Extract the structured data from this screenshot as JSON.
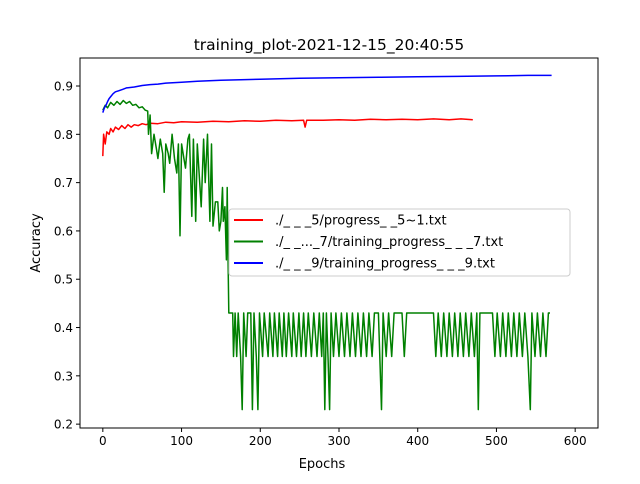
{
  "chart_data": {
    "type": "line",
    "title": "training_plot-2021-12-15_20:40:55",
    "xlabel": "Epochs",
    "ylabel": "Accuracy",
    "xlim": [
      -29,
      629
    ],
    "ylim": [
      0.192,
      0.958
    ],
    "xticks": [
      0,
      100,
      200,
      300,
      400,
      500,
      600
    ],
    "yticks": [
      0.2,
      0.3,
      0.4,
      0.5,
      0.6,
      0.7,
      0.8,
      0.9
    ],
    "ytick_labels": [
      "0.2",
      "0.3",
      "0.4",
      "0.5",
      "0.6",
      "0.7",
      "0.8",
      "0.9"
    ],
    "grid": false,
    "legend_placement": "center-right",
    "series": [
      {
        "name": "./_ _ _5/progress_ _5~1.txt",
        "color": "#ff0000",
        "points": [
          [
            0,
            0.755
          ],
          [
            1,
            0.8
          ],
          [
            3,
            0.78
          ],
          [
            5,
            0.805
          ],
          [
            8,
            0.8
          ],
          [
            10,
            0.812
          ],
          [
            13,
            0.805
          ],
          [
            16,
            0.815
          ],
          [
            20,
            0.81
          ],
          [
            24,
            0.818
          ],
          [
            28,
            0.812
          ],
          [
            32,
            0.82
          ],
          [
            36,
            0.815
          ],
          [
            40,
            0.82
          ],
          [
            45,
            0.818
          ],
          [
            50,
            0.822
          ],
          [
            55,
            0.82
          ],
          [
            60,
            0.823
          ],
          [
            70,
            0.822
          ],
          [
            80,
            0.825
          ],
          [
            90,
            0.824
          ],
          [
            100,
            0.826
          ],
          [
            120,
            0.825
          ],
          [
            140,
            0.827
          ],
          [
            160,
            0.826
          ],
          [
            180,
            0.828
          ],
          [
            200,
            0.827
          ],
          [
            220,
            0.829
          ],
          [
            240,
            0.828
          ],
          [
            255,
            0.829
          ],
          [
            257,
            0.815
          ],
          [
            259,
            0.829
          ],
          [
            280,
            0.829
          ],
          [
            300,
            0.83
          ],
          [
            320,
            0.829
          ],
          [
            340,
            0.831
          ],
          [
            360,
            0.83
          ],
          [
            380,
            0.831
          ],
          [
            400,
            0.83
          ],
          [
            420,
            0.832
          ],
          [
            440,
            0.83
          ],
          [
            455,
            0.832
          ],
          [
            470,
            0.83
          ]
        ]
      },
      {
        "name": "./_ _..._7/training_progress_ _ _7.txt",
        "color": "#008000",
        "points": [
          [
            0,
            0.85
          ],
          [
            3,
            0.86
          ],
          [
            6,
            0.855
          ],
          [
            10,
            0.866
          ],
          [
            14,
            0.86
          ],
          [
            18,
            0.868
          ],
          [
            22,
            0.862
          ],
          [
            26,
            0.87
          ],
          [
            30,
            0.864
          ],
          [
            34,
            0.868
          ],
          [
            38,
            0.86
          ],
          [
            42,
            0.862
          ],
          [
            46,
            0.855
          ],
          [
            50,
            0.857
          ],
          [
            54,
            0.85
          ],
          [
            57,
            0.848
          ],
          [
            58,
            0.8
          ],
          [
            60,
            0.84
          ],
          [
            62,
            0.76
          ],
          [
            65,
            0.8
          ],
          [
            68,
            0.77
          ],
          [
            70,
            0.75
          ],
          [
            73,
            0.79
          ],
          [
            76,
            0.76
          ],
          [
            78,
            0.68
          ],
          [
            80,
            0.78
          ],
          [
            83,
            0.76
          ],
          [
            85,
            0.74
          ],
          [
            88,
            0.8
          ],
          [
            91,
            0.75
          ],
          [
            94,
            0.72
          ],
          [
            96,
            0.78
          ],
          [
            98,
            0.59
          ],
          [
            100,
            0.78
          ],
          [
            103,
            0.75
          ],
          [
            105,
            0.73
          ],
          [
            108,
            0.79
          ],
          [
            110,
            0.8
          ],
          [
            113,
            0.63
          ],
          [
            115,
            0.79
          ],
          [
            118,
            0.62
          ],
          [
            120,
            0.78
          ],
          [
            123,
            0.7
          ],
          [
            125,
            0.65
          ],
          [
            128,
            0.79
          ],
          [
            130,
            0.7
          ],
          [
            133,
            0.8
          ],
          [
            136,
            0.62
          ],
          [
            138,
            0.78
          ],
          [
            140,
            0.61
          ],
          [
            143,
            0.66
          ],
          [
            146,
            0.66
          ],
          [
            148,
            0.6
          ],
          [
            150,
            0.62
          ],
          [
            152,
            0.69
          ],
          [
            153,
            0.62
          ],
          [
            155,
            0.65
          ],
          [
            157,
            0.54
          ],
          [
            158,
            0.69
          ],
          [
            159,
            0.55
          ],
          [
            160,
            0.43
          ],
          [
            165,
            0.43
          ],
          [
            166,
            0.34
          ],
          [
            168,
            0.43
          ],
          [
            170,
            0.34
          ],
          [
            172,
            0.43
          ],
          [
            175,
            0.34
          ],
          [
            177,
            0.23
          ],
          [
            179,
            0.43
          ],
          [
            182,
            0.34
          ],
          [
            184,
            0.43
          ],
          [
            188,
            0.43
          ],
          [
            190,
            0.23
          ],
          [
            192,
            0.43
          ],
          [
            195,
            0.34
          ],
          [
            197,
            0.23
          ],
          [
            199,
            0.43
          ],
          [
            203,
            0.34
          ],
          [
            205,
            0.43
          ],
          [
            210,
            0.34
          ],
          [
            212,
            0.43
          ],
          [
            216,
            0.34
          ],
          [
            218,
            0.43
          ],
          [
            222,
            0.34
          ],
          [
            224,
            0.43
          ],
          [
            228,
            0.34
          ],
          [
            230,
            0.43
          ],
          [
            233,
            0.34
          ],
          [
            236,
            0.43
          ],
          [
            240,
            0.34
          ],
          [
            242,
            0.43
          ],
          [
            246,
            0.34
          ],
          [
            249,
            0.43
          ],
          [
            252,
            0.34
          ],
          [
            255,
            0.43
          ],
          [
            258,
            0.34
          ],
          [
            261,
            0.43
          ],
          [
            265,
            0.34
          ],
          [
            268,
            0.43
          ],
          [
            272,
            0.34
          ],
          [
            275,
            0.43
          ],
          [
            278,
            0.34
          ],
          [
            280,
            0.43
          ],
          [
            282,
            0.23
          ],
          [
            284,
            0.43
          ],
          [
            286,
            0.34
          ],
          [
            288,
            0.23
          ],
          [
            290,
            0.43
          ],
          [
            293,
            0.34
          ],
          [
            296,
            0.43
          ],
          [
            300,
            0.34
          ],
          [
            303,
            0.43
          ],
          [
            307,
            0.34
          ],
          [
            310,
            0.43
          ],
          [
            314,
            0.34
          ],
          [
            317,
            0.43
          ],
          [
            321,
            0.34
          ],
          [
            324,
            0.43
          ],
          [
            328,
            0.34
          ],
          [
            331,
            0.43
          ],
          [
            335,
            0.34
          ],
          [
            338,
            0.43
          ],
          [
            342,
            0.34
          ],
          [
            345,
            0.43
          ],
          [
            350,
            0.43
          ],
          [
            354,
            0.23
          ],
          [
            356,
            0.43
          ],
          [
            360,
            0.34
          ],
          [
            363,
            0.43
          ],
          [
            367,
            0.34
          ],
          [
            370,
            0.43
          ],
          [
            380,
            0.43
          ],
          [
            383,
            0.34
          ],
          [
            386,
            0.43
          ],
          [
            395,
            0.43
          ],
          [
            420,
            0.43
          ],
          [
            423,
            0.34
          ],
          [
            426,
            0.43
          ],
          [
            430,
            0.34
          ],
          [
            433,
            0.43
          ],
          [
            437,
            0.34
          ],
          [
            440,
            0.43
          ],
          [
            444,
            0.34
          ],
          [
            447,
            0.43
          ],
          [
            451,
            0.34
          ],
          [
            454,
            0.43
          ],
          [
            458,
            0.34
          ],
          [
            461,
            0.43
          ],
          [
            465,
            0.34
          ],
          [
            468,
            0.43
          ],
          [
            472,
            0.34
          ],
          [
            475,
            0.43
          ],
          [
            477,
            0.23
          ],
          [
            479,
            0.43
          ],
          [
            495,
            0.43
          ],
          [
            498,
            0.34
          ],
          [
            501,
            0.43
          ],
          [
            505,
            0.34
          ],
          [
            508,
            0.43
          ],
          [
            512,
            0.34
          ],
          [
            515,
            0.43
          ],
          [
            519,
            0.34
          ],
          [
            522,
            0.43
          ],
          [
            526,
            0.34
          ],
          [
            529,
            0.43
          ],
          [
            533,
            0.34
          ],
          [
            536,
            0.43
          ],
          [
            540,
            0.34
          ],
          [
            543,
            0.23
          ],
          [
            545,
            0.43
          ],
          [
            549,
            0.34
          ],
          [
            552,
            0.43
          ],
          [
            556,
            0.34
          ],
          [
            559,
            0.43
          ],
          [
            563,
            0.34
          ],
          [
            566,
            0.43
          ],
          [
            568,
            0.43
          ]
        ]
      },
      {
        "name": "./_ _ _9/training_progress_ _ _9.txt",
        "color": "#0000ff",
        "points": [
          [
            0,
            0.845
          ],
          [
            2,
            0.855
          ],
          [
            4,
            0.86
          ],
          [
            6,
            0.868
          ],
          [
            8,
            0.874
          ],
          [
            10,
            0.878
          ],
          [
            13,
            0.884
          ],
          [
            16,
            0.888
          ],
          [
            20,
            0.89
          ],
          [
            25,
            0.893
          ],
          [
            30,
            0.896
          ],
          [
            40,
            0.898
          ],
          [
            50,
            0.901
          ],
          [
            60,
            0.903
          ],
          [
            70,
            0.904
          ],
          [
            80,
            0.906
          ],
          [
            100,
            0.908
          ],
          [
            120,
            0.91
          ],
          [
            150,
            0.912
          ],
          [
            175,
            0.913
          ],
          [
            200,
            0.914
          ],
          [
            250,
            0.916
          ],
          [
            300,
            0.917
          ],
          [
            350,
            0.918
          ],
          [
            400,
            0.919
          ],
          [
            450,
            0.92
          ],
          [
            500,
            0.921
          ],
          [
            540,
            0.922
          ],
          [
            570,
            0.922
          ]
        ]
      }
    ]
  }
}
